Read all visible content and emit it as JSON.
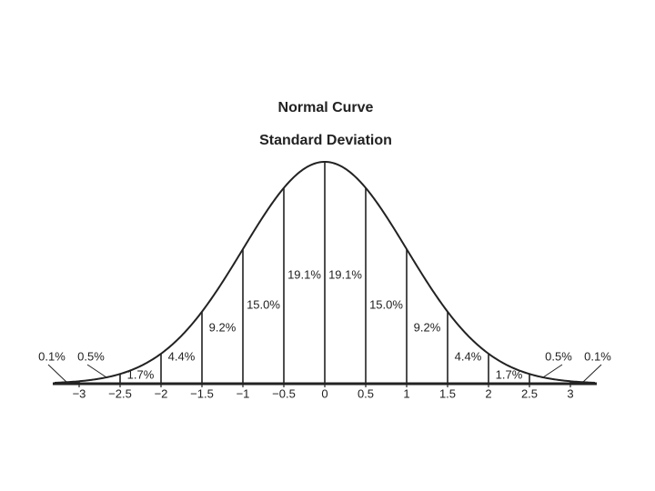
{
  "chart_data": {
    "type": "normal",
    "title": "Normal Curve",
    "subtitle": "Standard Deviation",
    "xlim": [
      -3.3,
      3.3
    ],
    "xticks": [
      {
        "value": -3,
        "label": "−3"
      },
      {
        "value": -2.5,
        "label": "−2.5"
      },
      {
        "value": -2,
        "label": "−2"
      },
      {
        "value": -1.5,
        "label": "−1.5"
      },
      {
        "value": -1,
        "label": "−1"
      },
      {
        "value": -0.5,
        "label": "−0.5"
      },
      0,
      0.5,
      1,
      1.5,
      2,
      2.5,
      3
    ],
    "values": [
      0.1,
      0.5,
      1.7,
      4.4,
      9.2,
      15.0,
      19.1,
      19.1,
      15.0,
      9.2,
      4.4,
      1.7,
      0.5,
      0.1
    ],
    "value_labels": [
      "0.1%",
      "0.5%",
      "1.7%",
      "4.4%",
      "9.2%",
      "15.0%",
      "19.1%",
      "19.1%",
      "15.0%",
      "9.2%",
      "4.4%",
      "1.7%",
      "0.5%",
      "0.1%"
    ],
    "color": "#222222"
  }
}
